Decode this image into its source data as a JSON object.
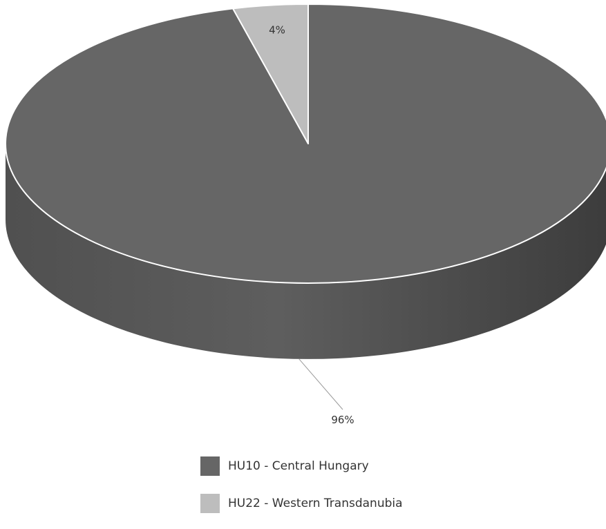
{
  "chart_data": {
    "type": "pie",
    "style": "3d",
    "categories": [
      "HU10 - Central Hungary",
      "HU22 - Western Transdanubia"
    ],
    "values": [
      96,
      4
    ],
    "value_labels": [
      "96%",
      "4%"
    ],
    "colors": [
      "#666666",
      "#bdbdbd"
    ],
    "title": "",
    "legend_position": "bottom"
  }
}
